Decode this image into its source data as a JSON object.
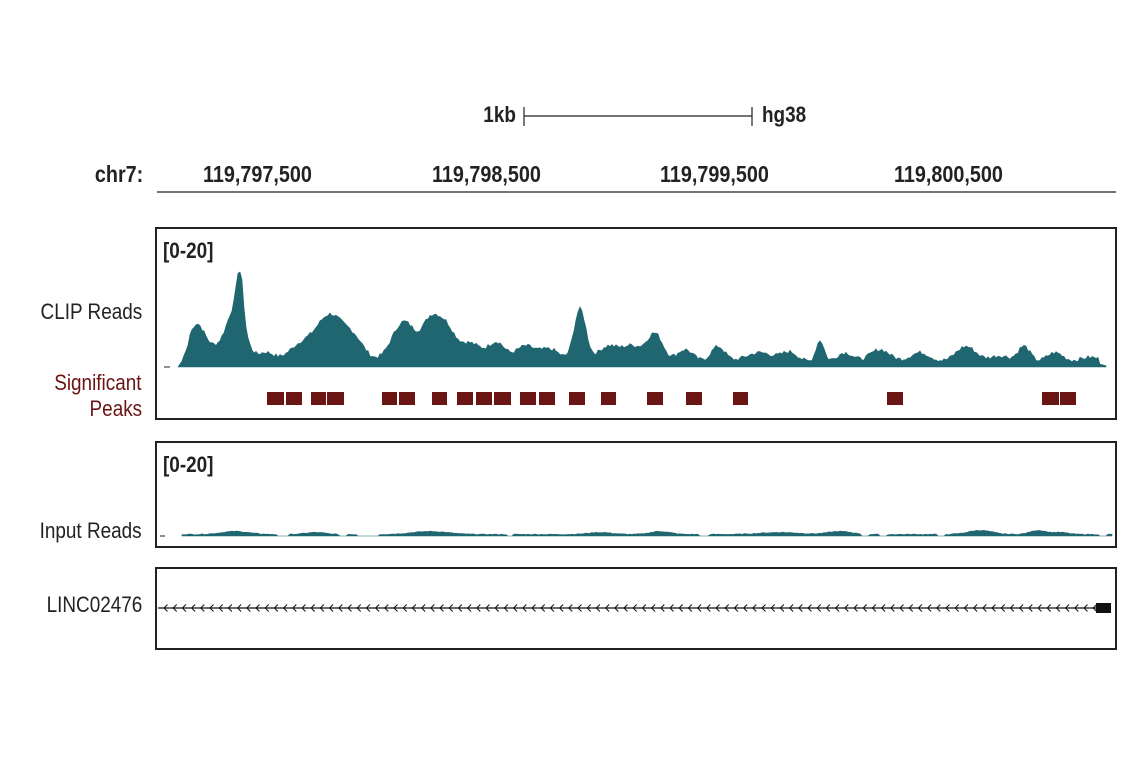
{
  "scale_bar": {
    "length_label": "1kb",
    "genome_label": "hg38"
  },
  "ruler": {
    "chrom_label": "chr7:",
    "ticks": [
      "119,797,500",
      "119,798,500",
      "119,799,500",
      "119,800,500"
    ]
  },
  "tracks": {
    "clip": {
      "label": "CLIP Reads",
      "range": "[0-20]"
    },
    "peaks": {
      "label_line1": "Significant",
      "label_line2": "Peaks"
    },
    "input": {
      "label": "Input Reads",
      "range": "[0-20]"
    },
    "gene": {
      "label": "LINC02476",
      "strand": "-"
    }
  },
  "colors": {
    "coverage": "#1f6670",
    "peak": "#6b1414",
    "frame": "#222222"
  }
}
